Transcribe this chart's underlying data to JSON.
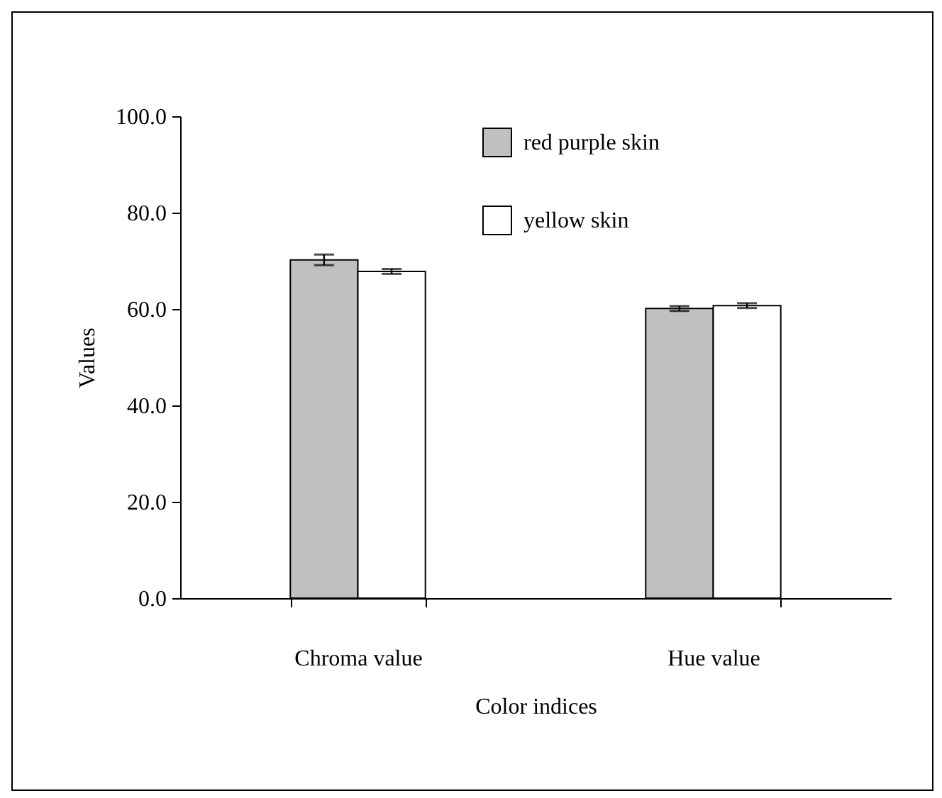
{
  "chart_data": {
    "type": "bar",
    "xlabel": "Color indices",
    "ylabel": "Values",
    "categories": [
      "Chroma value",
      "Hue value"
    ],
    "series": [
      {
        "name": "red purple skin",
        "color": "#c0c0c0",
        "values": [
          70.2,
          60.1
        ],
        "errors": [
          1.1,
          0.5
        ]
      },
      {
        "name": "yellow skin",
        "color": "#ffffff",
        "values": [
          67.8,
          60.7
        ],
        "errors": [
          0.5,
          0.5
        ]
      }
    ],
    "ylim": [
      0,
      100
    ],
    "yticks": [
      {
        "value": 0,
        "label": "0.0"
      },
      {
        "value": 20,
        "label": "20.0"
      },
      {
        "value": 40,
        "label": "40.0"
      },
      {
        "value": 60,
        "label": "60.0"
      },
      {
        "value": 80,
        "label": "80.0"
      },
      {
        "value": 100,
        "label": "100.0"
      }
    ],
    "grid": false,
    "legend": "top"
  }
}
